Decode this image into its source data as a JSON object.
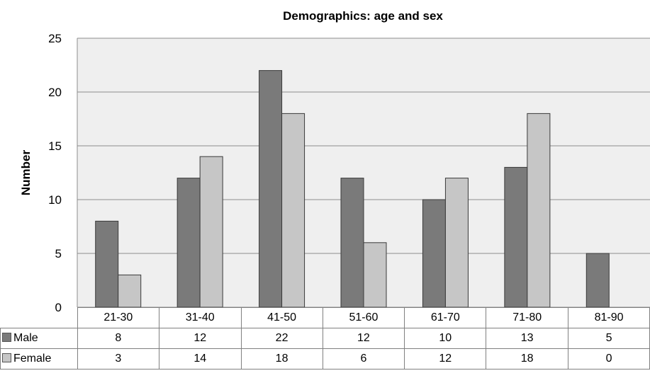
{
  "chart_data": {
    "type": "bar",
    "title": "Demographics: age and sex",
    "xlabel": "",
    "ylabel": "Number",
    "ylim": [
      0,
      25
    ],
    "yticks": [
      0,
      5,
      10,
      15,
      20,
      25
    ],
    "grid": true,
    "legend": "data-table",
    "categories": [
      "21-30",
      "31-40",
      "41-50",
      "51-60",
      "61-70",
      "71-80",
      "81-90"
    ],
    "series": [
      {
        "name": "Male",
        "color": "#7a7a7a",
        "values": [
          8,
          12,
          22,
          12,
          10,
          13,
          5
        ]
      },
      {
        "name": "Female",
        "color": "#c6c6c6",
        "values": [
          3,
          14,
          18,
          6,
          12,
          18,
          0
        ]
      }
    ]
  }
}
